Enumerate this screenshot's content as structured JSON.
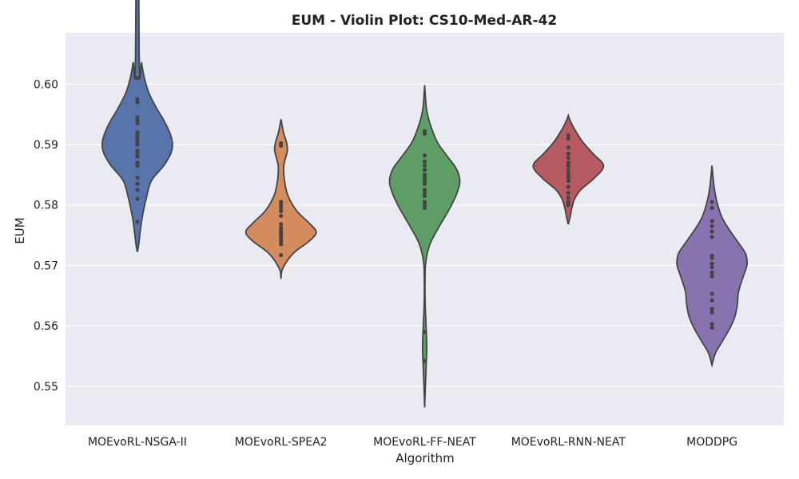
{
  "chart_data": {
    "type": "violin",
    "title": "EUM - Violin Plot: CS10-Med-AR-42",
    "xlabel": "Algorithm",
    "ylabel": "EUM",
    "ylim": [
      0.5435,
      0.6085
    ],
    "yticks": [
      0.55,
      0.56,
      0.57,
      0.58,
      0.59,
      0.6
    ],
    "ytick_labels": [
      "0.55",
      "0.56",
      "0.57",
      "0.58",
      "0.59",
      "0.60"
    ],
    "grid": true,
    "background": "#eaeaf2",
    "categories": [
      "MOEvoRL-NSGA-II",
      "MOEvoRL-SPEA2",
      "MOEvoRL-FF-NEAT",
      "MOEvoRL-RNN-NEAT",
      "MODDPG"
    ],
    "series": [
      {
        "color": "#5874aa",
        "points": [
          0.601,
          0.5975,
          0.597,
          0.5945,
          0.594,
          0.5935,
          0.592,
          0.5915,
          0.591,
          0.5905,
          0.59,
          0.589,
          0.5885,
          0.588,
          0.587,
          0.5865,
          0.5845,
          0.5835,
          0.5825,
          0.581,
          0.5772
        ],
        "violin_range": [
          0.5722,
          0.6658
        ],
        "violin_profile": [
          [
            0.5722,
            0.0
          ],
          [
            0.5735,
            0.04
          ],
          [
            0.5755,
            0.08
          ],
          [
            0.578,
            0.14
          ],
          [
            0.581,
            0.25
          ],
          [
            0.584,
            0.4
          ],
          [
            0.5865,
            0.75
          ],
          [
            0.5885,
            0.95
          ],
          [
            0.59,
            1.0
          ],
          [
            0.5915,
            0.95
          ],
          [
            0.5935,
            0.8
          ],
          [
            0.596,
            0.55
          ],
          [
            0.5985,
            0.33
          ],
          [
            0.601,
            0.2
          ],
          [
            0.6035,
            0.12
          ],
          [
            0.606,
            0.05
          ],
          [
            0.6658,
            0.0
          ]
        ]
      },
      {
        "color": "#d48b5e",
        "points": [
          0.5902,
          0.5898,
          0.5805,
          0.58,
          0.5795,
          0.579,
          0.5782,
          0.5768,
          0.5762,
          0.5758,
          0.5754,
          0.575,
          0.5745,
          0.574,
          0.5735,
          0.5717
        ],
        "violin_range": [
          0.5678,
          0.5942
        ],
        "violin_profile": [
          [
            0.5678,
            0.0
          ],
          [
            0.5695,
            0.05
          ],
          [
            0.572,
            0.35
          ],
          [
            0.574,
            0.8
          ],
          [
            0.5755,
            1.0
          ],
          [
            0.577,
            0.8
          ],
          [
            0.579,
            0.45
          ],
          [
            0.5815,
            0.2
          ],
          [
            0.584,
            0.1
          ],
          [
            0.5865,
            0.08
          ],
          [
            0.589,
            0.18
          ],
          [
            0.5905,
            0.15
          ],
          [
            0.592,
            0.07
          ],
          [
            0.5942,
            0.0
          ]
        ]
      },
      {
        "color": "#5e9e66",
        "points": [
          0.5922,
          0.5918,
          0.5882,
          0.5872,
          0.5865,
          0.5858,
          0.585,
          0.5845,
          0.584,
          0.5835,
          0.5825,
          0.582,
          0.5815,
          0.5805,
          0.58,
          0.5795,
          0.559,
          0.5542
        ],
        "violin_range": [
          0.5465,
          0.5998
        ],
        "violin_profile": [
          [
            0.5465,
            0.0
          ],
          [
            0.55,
            0.02
          ],
          [
            0.553,
            0.04
          ],
          [
            0.5565,
            0.06
          ],
          [
            0.56,
            0.04
          ],
          [
            0.5635,
            0.015
          ],
          [
            0.567,
            0.01
          ],
          [
            0.5705,
            0.03
          ],
          [
            0.5735,
            0.15
          ],
          [
            0.5765,
            0.42
          ],
          [
            0.5795,
            0.72
          ],
          [
            0.582,
            0.92
          ],
          [
            0.584,
            1.0
          ],
          [
            0.586,
            0.9
          ],
          [
            0.588,
            0.65
          ],
          [
            0.5905,
            0.35
          ],
          [
            0.5935,
            0.15
          ],
          [
            0.596,
            0.05
          ],
          [
            0.5998,
            0.0
          ]
        ]
      },
      {
        "color": "#b75b62",
        "points": [
          0.5915,
          0.591,
          0.5895,
          0.5885,
          0.5878,
          0.587,
          0.5865,
          0.5858,
          0.5852,
          0.5846,
          0.584,
          0.583,
          0.582,
          0.5812,
          0.5805,
          0.58
        ],
        "violin_range": [
          0.5768,
          0.5948
        ],
        "violin_profile": [
          [
            0.5768,
            0.0
          ],
          [
            0.578,
            0.05
          ],
          [
            0.5795,
            0.1
          ],
          [
            0.581,
            0.18
          ],
          [
            0.5825,
            0.35
          ],
          [
            0.5845,
            0.75
          ],
          [
            0.5865,
            1.0
          ],
          [
            0.5885,
            0.7
          ],
          [
            0.5905,
            0.4
          ],
          [
            0.5925,
            0.18
          ],
          [
            0.594,
            0.05
          ],
          [
            0.5948,
            0.0
          ]
        ]
      },
      {
        "color": "#8673b0",
        "points": [
          0.5805,
          0.5795,
          0.5773,
          0.5765,
          0.5756,
          0.5747,
          0.5716,
          0.5712,
          0.5703,
          0.5697,
          0.5688,
          0.5682,
          0.5653,
          0.5642,
          0.5628,
          0.5622,
          0.5603,
          0.5597
        ],
        "violin_range": [
          0.5535,
          0.5865
        ],
        "violin_profile": [
          [
            0.5535,
            0.0
          ],
          [
            0.5555,
            0.1
          ],
          [
            0.5575,
            0.3
          ],
          [
            0.5595,
            0.5
          ],
          [
            0.5615,
            0.65
          ],
          [
            0.5635,
            0.72
          ],
          [
            0.5655,
            0.75
          ],
          [
            0.5675,
            0.85
          ],
          [
            0.5695,
            0.97
          ],
          [
            0.5705,
            1.0
          ],
          [
            0.572,
            0.95
          ],
          [
            0.574,
            0.72
          ],
          [
            0.576,
            0.48
          ],
          [
            0.578,
            0.28
          ],
          [
            0.5805,
            0.14
          ],
          [
            0.583,
            0.06
          ],
          [
            0.5865,
            0.0
          ]
        ]
      }
    ]
  }
}
